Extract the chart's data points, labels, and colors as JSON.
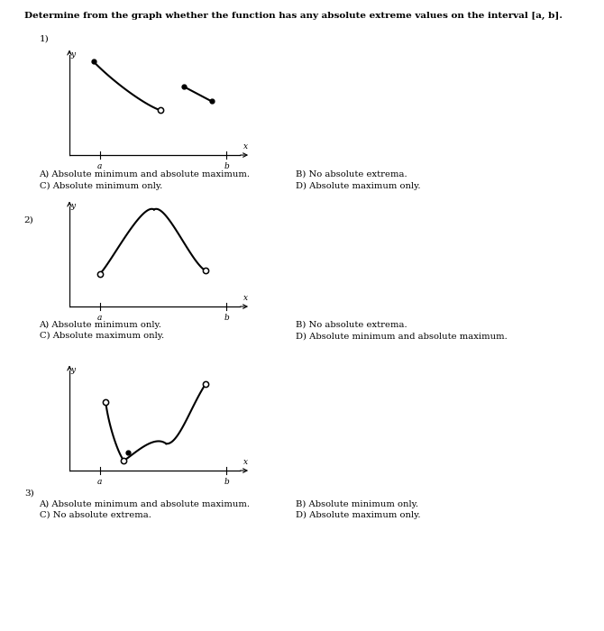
{
  "title": "Determine from the graph whether the function has any absolute extreme values on the interval [a, b].",
  "title_fontsize": 7.5,
  "bg_color": "#ffffff",
  "graph1": {
    "label": "1)",
    "answers": [
      [
        "A) Absolute minimum and absolute maximum.",
        "B) No absolute extrema."
      ],
      [
        "C) Absolute minimum only.",
        "D) Absolute maximum only."
      ]
    ]
  },
  "graph2": {
    "label": "2)",
    "answers": [
      [
        "A) Absolute minimum only.",
        "B) No absolute extrema."
      ],
      [
        "C) Absolute maximum only.",
        "D) Absolute minimum and absolute maximum."
      ]
    ]
  },
  "graph3": {
    "label": "3)",
    "answers": [
      [
        "A) Absolute minimum and absolute maximum.",
        "B) Absolute minimum only."
      ],
      [
        "C) No absolute extrema.",
        "D) Absolute maximum only."
      ]
    ]
  }
}
